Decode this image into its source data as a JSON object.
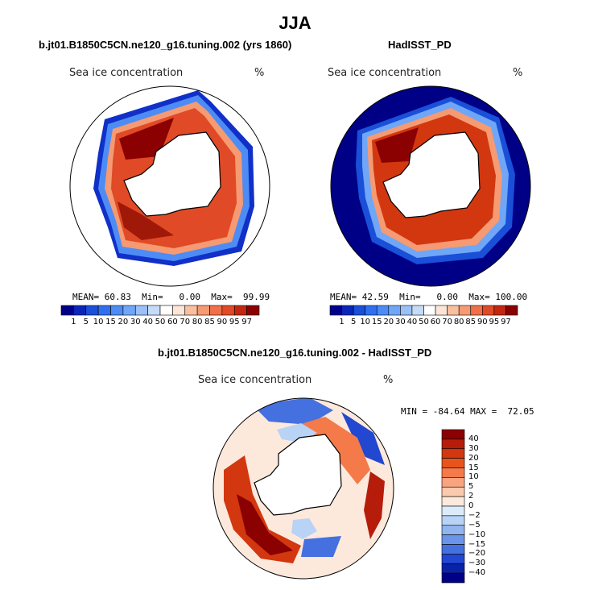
{
  "title": "JJA",
  "variable_label": "Sea ice concentration",
  "units": "%",
  "panels": {
    "left": {
      "subtitle": "b.jt01.B1850C5CN.ne120_g16.tuning.002 (yrs 1860)",
      "stats": {
        "mean_label": "MEAN=",
        "mean": "60.83",
        "min_label": "Min=",
        "min": "0.00",
        "max_label": "Max=",
        "max": "99.99"
      }
    },
    "right": {
      "subtitle": "HadISST_PD",
      "stats": {
        "mean_label": "MEAN=",
        "mean": "42.59",
        "min_label": "Min=",
        "min": "0.00",
        "max_label": "Max=",
        "max": "100.00"
      }
    },
    "diff": {
      "subtitle": "b.jt01.B1850C5CN.ne120_g16.tuning.002 - HadISST_PD",
      "stats": {
        "min_label": "MIN =",
        "min": "-84.64",
        "max_label": "MAX =",
        "max": "72.05"
      }
    }
  },
  "colorbars": {
    "seq": {
      "labels": [
        "1",
        "5",
        "10",
        "15",
        "20",
        "30",
        "40",
        "50",
        "60",
        "70",
        "80",
        "85",
        "90",
        "95",
        "97"
      ],
      "colors": [
        "#00008b",
        "#0a26b8",
        "#1a4fd8",
        "#2f6ff0",
        "#4d8cf5",
        "#6fa6f7",
        "#9ac0f7",
        "#c6dbf7",
        "#ffffff",
        "#fde6d8",
        "#f9c0a0",
        "#f59a72",
        "#ef7049",
        "#e04a26",
        "#c22810",
        "#8b0000"
      ]
    },
    "div": {
      "labels": [
        "40",
        "30",
        "20",
        "15",
        "10",
        "5",
        "2",
        "0",
        "−2",
        "−5",
        "−10",
        "−15",
        "−20",
        "−30",
        "−40"
      ],
      "colors": [
        "#8b0000",
        "#b51d0a",
        "#d2370f",
        "#e8541d",
        "#f47a4a",
        "#f8a47e",
        "#fbc9ae",
        "#fde9dc",
        "#dcebfa",
        "#b8d3f5",
        "#90b5ef",
        "#6a95ea",
        "#4570e0",
        "#2247d0",
        "#0a22a8",
        "#000087"
      ]
    }
  }
}
